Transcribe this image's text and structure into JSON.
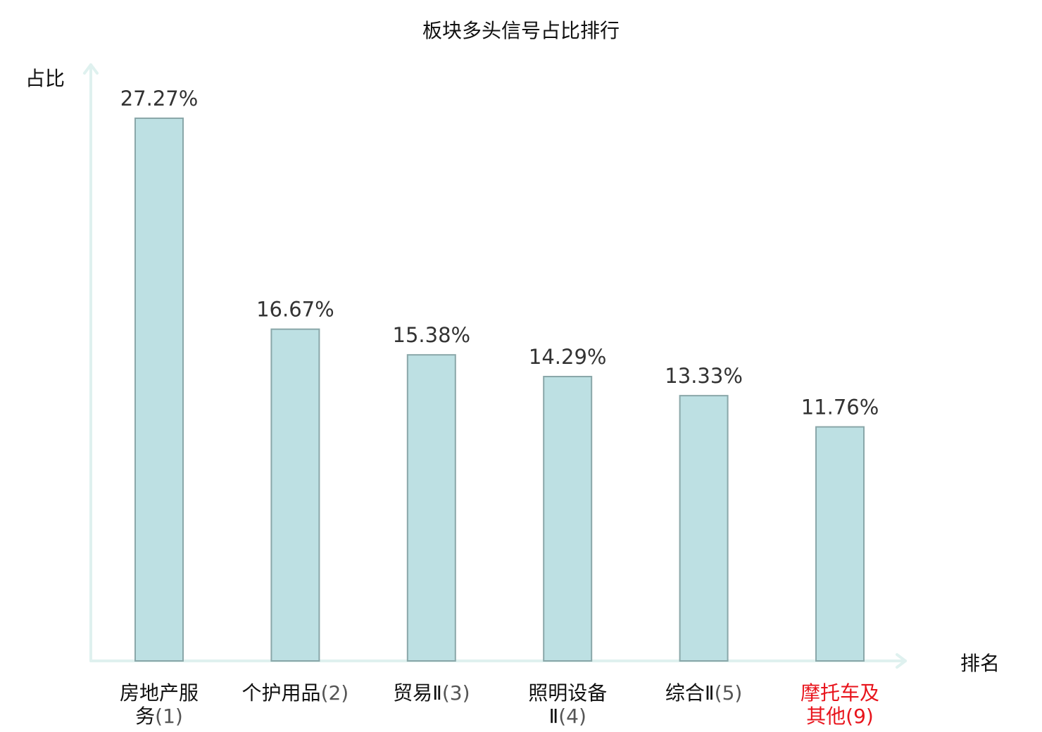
{
  "chart_data": {
    "type": "bar",
    "title": "板块多头信号占比排行",
    "ylabel": "占比",
    "xlabel": "排名",
    "ylim": [
      0,
      30
    ],
    "grid": false,
    "categories": [
      {
        "name_lines": [
          "房地产服",
          "务"
        ],
        "rank": "(1)",
        "highlight": false
      },
      {
        "name_lines": [
          "个护用品"
        ],
        "rank": "(2)",
        "highlight": false
      },
      {
        "name_lines": [
          "贸易Ⅱ"
        ],
        "rank": "(3)",
        "highlight": false
      },
      {
        "name_lines": [
          "照明设备",
          "Ⅱ"
        ],
        "rank": "(4)",
        "highlight": false
      },
      {
        "name_lines": [
          "综合Ⅱ"
        ],
        "rank": "(5)",
        "highlight": false
      },
      {
        "name_lines": [
          "摩托车及",
          "其他"
        ],
        "rank": "(9)",
        "highlight": true
      }
    ],
    "values": [
      27.27,
      16.67,
      15.38,
      14.29,
      13.33,
      11.76
    ],
    "value_labels": [
      "27.27%",
      "16.67%",
      "15.38%",
      "14.29%",
      "13.33%",
      "11.76%"
    ],
    "colors": {
      "bar_fill": "#bde0e3",
      "bar_stroke": "#8aa7a9",
      "axis": "#dff1ef",
      "label": "#111111",
      "rank": "#555555",
      "highlight": "#e8141c"
    }
  }
}
